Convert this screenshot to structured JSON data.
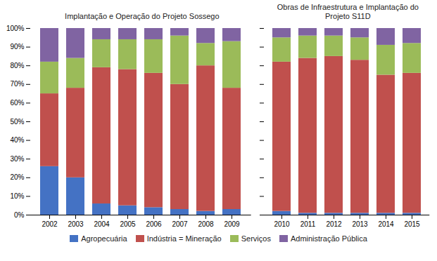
{
  "chart_data": [
    {
      "type": "bar",
      "title": "Implantação e Operação do Projeto Sossego",
      "categories": [
        "2002",
        "2003",
        "2004",
        "2005",
        "2006",
        "2007",
        "2008",
        "2009"
      ],
      "series": [
        {
          "name": "Agropecuária",
          "color": "#4472c4",
          "values": [
            26,
            20,
            6,
            5,
            4,
            3,
            2,
            3
          ]
        },
        {
          "name": "Indústria = Mineração",
          "color": "#c0504d",
          "values": [
            39,
            48,
            73,
            73,
            72,
            67,
            78,
            65
          ]
        },
        {
          "name": "Serviços",
          "color": "#9bbb59",
          "values": [
            17,
            16,
            15,
            16,
            18,
            26,
            12,
            25
          ]
        },
        {
          "name": "Administração Pública",
          "color": "#8064a2",
          "values": [
            18,
            16,
            6,
            6,
            6,
            4,
            8,
            7
          ]
        }
      ],
      "stacked": true,
      "ylim": [
        0,
        100
      ],
      "yticks": [
        {
          "value": 0,
          "label": "0%"
        },
        {
          "value": 10,
          "label": "10%"
        },
        {
          "value": 20,
          "label": "20%"
        },
        {
          "value": 30,
          "label": "30%"
        },
        {
          "value": 40,
          "label": "40%"
        },
        {
          "value": 50,
          "label": "50%"
        },
        {
          "value": 60,
          "label": "60%"
        },
        {
          "value": 70,
          "label": "70%"
        },
        {
          "value": 80,
          "label": "80%"
        },
        {
          "value": 90,
          "label": "90%"
        },
        {
          "value": 100,
          "label": "100%"
        }
      ],
      "legend": "bottom"
    },
    {
      "type": "bar",
      "title": "Obras de Infraestrutura e Implantação do\nProjeto S11D",
      "categories": [
        "2010",
        "2011",
        "2012",
        "2013",
        "2014",
        "2015"
      ],
      "series": [
        {
          "name": "Agropecuária",
          "color": "#4472c4",
          "values": [
            2,
            1,
            1,
            1,
            1,
            1
          ]
        },
        {
          "name": "Indústria = Mineração",
          "color": "#c0504d",
          "values": [
            80,
            83,
            84,
            82,
            74,
            75
          ]
        },
        {
          "name": "Serviços",
          "color": "#9bbb59",
          "values": [
            13,
            12,
            11,
            12,
            16,
            16
          ]
        },
        {
          "name": "Administração Pública",
          "color": "#8064a2",
          "values": [
            5,
            4,
            4,
            5,
            9,
            8
          ]
        }
      ],
      "stacked": true,
      "ylim": [
        0,
        100
      ],
      "yticks": [
        0,
        10,
        20,
        30,
        40,
        50,
        60,
        70,
        80,
        90,
        100
      ],
      "tick_labels": "x",
      "legend": "bottom"
    }
  ]
}
